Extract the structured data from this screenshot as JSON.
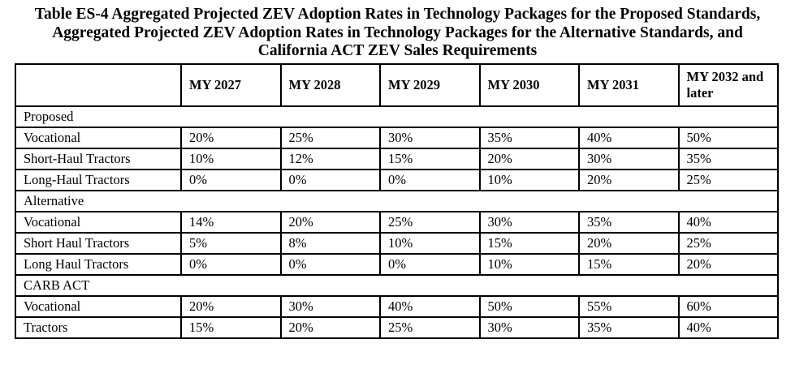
{
  "title": {
    "line1": "Table ES-4 Aggregated Projected ZEV Adoption Rates in Technology Packages for the Proposed Standards,",
    "line2": "Aggregated Projected ZEV Adoption Rates in Technology Packages for the Alternative Standards, and",
    "line3": "California ACT ZEV Sales Requirements"
  },
  "table": {
    "header": [
      "",
      "MY 2027",
      "MY 2028",
      "MY 2029",
      "MY 2030",
      "MY 2031",
      "MY 2032 and later"
    ],
    "sections": [
      {
        "label": "Proposed",
        "rows": [
          {
            "label": "Vocational",
            "values": [
              "20%",
              "25%",
              "30%",
              "35%",
              "40%",
              "50%"
            ]
          },
          {
            "label": "Short-Haul Tractors",
            "values": [
              "10%",
              "12%",
              "15%",
              "20%",
              "30%",
              "35%"
            ]
          },
          {
            "label": "Long-Haul Tractors",
            "values": [
              "0%",
              "0%",
              "0%",
              "10%",
              "20%",
              "25%"
            ]
          }
        ]
      },
      {
        "label": "Alternative",
        "rows": [
          {
            "label": "Vocational",
            "values": [
              "14%",
              "20%",
              "25%",
              "30%",
              "35%",
              "40%"
            ]
          },
          {
            "label": "Short Haul Tractors",
            "values": [
              "5%",
              "8%",
              "10%",
              "15%",
              "20%",
              "25%"
            ]
          },
          {
            "label": "Long Haul Tractors",
            "values": [
              "0%",
              "0%",
              "0%",
              "10%",
              "15%",
              "20%"
            ]
          }
        ]
      },
      {
        "label": "CARB ACT",
        "rows": [
          {
            "label": "Vocational",
            "values": [
              "20%",
              "30%",
              "40%",
              "50%",
              "55%",
              "60%"
            ]
          },
          {
            "label": "Tractors",
            "values": [
              "15%",
              "20%",
              "25%",
              "30%",
              "35%",
              "40%"
            ]
          }
        ]
      }
    ]
  },
  "chart_data": {
    "type": "table",
    "title": "Table ES-4 Aggregated Projected ZEV Adoption Rates in Technology Packages for the Proposed Standards, Aggregated Projected ZEV Adoption Rates in Technology Packages for the Alternative Standards, and California ACT ZEV Sales Requirements",
    "categories": [
      "MY 2027",
      "MY 2028",
      "MY 2029",
      "MY 2030",
      "MY 2031",
      "MY 2032 and later"
    ],
    "series": [
      {
        "group": "Proposed",
        "name": "Vocational",
        "values": [
          20,
          25,
          30,
          35,
          40,
          50
        ],
        "unit": "%"
      },
      {
        "group": "Proposed",
        "name": "Short-Haul Tractors",
        "values": [
          10,
          12,
          15,
          20,
          30,
          35
        ],
        "unit": "%"
      },
      {
        "group": "Proposed",
        "name": "Long-Haul Tractors",
        "values": [
          0,
          0,
          0,
          10,
          20,
          25
        ],
        "unit": "%"
      },
      {
        "group": "Alternative",
        "name": "Vocational",
        "values": [
          14,
          20,
          25,
          30,
          35,
          40
        ],
        "unit": "%"
      },
      {
        "group": "Alternative",
        "name": "Short Haul Tractors",
        "values": [
          5,
          8,
          10,
          15,
          20,
          25
        ],
        "unit": "%"
      },
      {
        "group": "Alternative",
        "name": "Long Haul Tractors",
        "values": [
          0,
          0,
          0,
          10,
          15,
          20
        ],
        "unit": "%"
      },
      {
        "group": "CARB ACT",
        "name": "Vocational",
        "values": [
          20,
          30,
          40,
          50,
          55,
          60
        ],
        "unit": "%"
      },
      {
        "group": "CARB ACT",
        "name": "Tractors",
        "values": [
          15,
          20,
          25,
          30,
          35,
          40
        ],
        "unit": "%"
      }
    ]
  }
}
